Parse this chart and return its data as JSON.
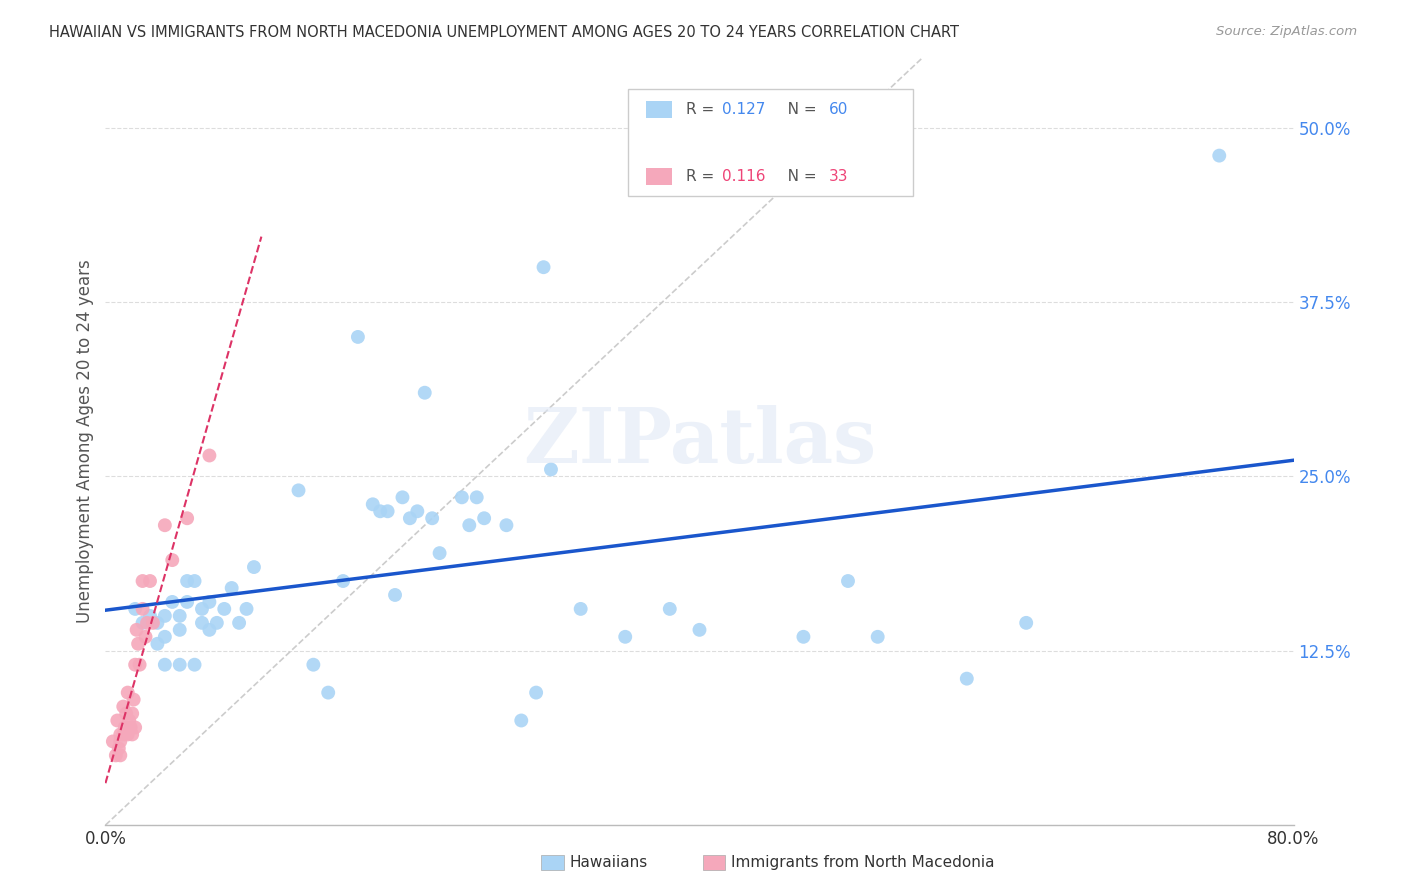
{
  "title": "HAWAIIAN VS IMMIGRANTS FROM NORTH MACEDONIA UNEMPLOYMENT AMONG AGES 20 TO 24 YEARS CORRELATION CHART",
  "source": "Source: ZipAtlas.com",
  "ylabel": "Unemployment Among Ages 20 to 24 years",
  "xmin": 0.0,
  "xmax": 0.8,
  "ymin": 0.0,
  "ymax": 0.55,
  "xticks": [
    0.0,
    0.1,
    0.2,
    0.3,
    0.4,
    0.5,
    0.6,
    0.7,
    0.8
  ],
  "xticklabels": [
    "0.0%",
    "",
    "",
    "",
    "",
    "",
    "",
    "",
    "80.0%"
  ],
  "yticks": [
    0.0,
    0.125,
    0.25,
    0.375,
    0.5
  ],
  "yticklabels": [
    "",
    "12.5%",
    "25.0%",
    "37.5%",
    "50.0%"
  ],
  "hawaiian_R": 0.127,
  "hawaiian_N": 60,
  "macedonian_R": 0.116,
  "macedonian_N": 33,
  "hawaiian_color": "#aad4f5",
  "macedonian_color": "#f5a8bb",
  "trend_hawaiian_color": "#1a56cc",
  "trend_macedonian_color": "#dd3366",
  "diagonal_color": "#cccccc",
  "watermark_text": "ZIPatlas",
  "hawaiian_x": [
    0.02,
    0.025,
    0.03,
    0.035,
    0.035,
    0.04,
    0.04,
    0.04,
    0.045,
    0.05,
    0.05,
    0.05,
    0.055,
    0.055,
    0.06,
    0.06,
    0.065,
    0.065,
    0.07,
    0.07,
    0.075,
    0.08,
    0.085,
    0.09,
    0.095,
    0.1,
    0.13,
    0.14,
    0.15,
    0.16,
    0.17,
    0.18,
    0.185,
    0.19,
    0.195,
    0.2,
    0.205,
    0.21,
    0.215,
    0.22,
    0.225,
    0.24,
    0.245,
    0.25,
    0.255,
    0.27,
    0.28,
    0.29,
    0.295,
    0.3,
    0.32,
    0.35,
    0.38,
    0.4,
    0.47,
    0.5,
    0.52,
    0.58,
    0.62,
    0.75
  ],
  "hawaiian_y": [
    0.155,
    0.145,
    0.15,
    0.145,
    0.13,
    0.135,
    0.15,
    0.115,
    0.16,
    0.15,
    0.14,
    0.115,
    0.16,
    0.175,
    0.115,
    0.175,
    0.145,
    0.155,
    0.14,
    0.16,
    0.145,
    0.155,
    0.17,
    0.145,
    0.155,
    0.185,
    0.24,
    0.115,
    0.095,
    0.175,
    0.35,
    0.23,
    0.225,
    0.225,
    0.165,
    0.235,
    0.22,
    0.225,
    0.31,
    0.22,
    0.195,
    0.235,
    0.215,
    0.235,
    0.22,
    0.215,
    0.075,
    0.095,
    0.4,
    0.255,
    0.155,
    0.135,
    0.155,
    0.14,
    0.135,
    0.175,
    0.135,
    0.105,
    0.145,
    0.48
  ],
  "macedonian_x": [
    0.005,
    0.007,
    0.008,
    0.009,
    0.01,
    0.01,
    0.01,
    0.012,
    0.012,
    0.013,
    0.014,
    0.015,
    0.015,
    0.016,
    0.017,
    0.018,
    0.018,
    0.019,
    0.02,
    0.02,
    0.021,
    0.022,
    0.023,
    0.025,
    0.025,
    0.027,
    0.028,
    0.03,
    0.032,
    0.04,
    0.045,
    0.055,
    0.07
  ],
  "macedonian_y": [
    0.06,
    0.05,
    0.075,
    0.055,
    0.06,
    0.065,
    0.05,
    0.085,
    0.065,
    0.07,
    0.08,
    0.095,
    0.065,
    0.075,
    0.07,
    0.065,
    0.08,
    0.09,
    0.115,
    0.07,
    0.14,
    0.13,
    0.115,
    0.155,
    0.175,
    0.135,
    0.145,
    0.175,
    0.145,
    0.215,
    0.19,
    0.22,
    0.265
  ]
}
